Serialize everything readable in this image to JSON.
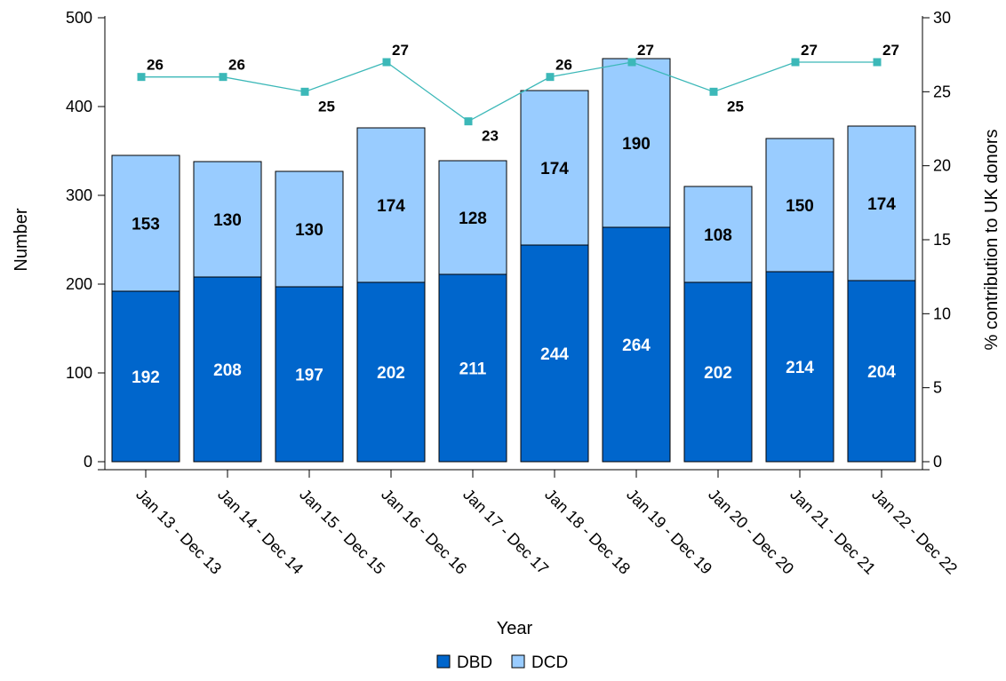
{
  "chart_data": {
    "type": "bar",
    "stacked": true,
    "title": "",
    "xlabel": "Year",
    "ylabel": "Number",
    "y2label": "% contribution to UK donors",
    "ylim": [
      0,
      500
    ],
    "y2lim": [
      0,
      30
    ],
    "yticks": [
      0,
      100,
      200,
      300,
      400,
      500
    ],
    "y2ticks": [
      0,
      5,
      10,
      15,
      20,
      25,
      30
    ],
    "categories": [
      "Jan 13 - Dec 13",
      "Jan 14 - Dec 14",
      "Jan 15 - Dec 15",
      "Jan 16 - Dec 16",
      "Jan 17 - Dec 17",
      "Jan 18 - Dec 18",
      "Jan 19 - Dec 19",
      "Jan 20 - Dec 20",
      "Jan 21 - Dec 21",
      "Jan 22 - Dec 22"
    ],
    "series": [
      {
        "name": "DBD",
        "values": [
          192,
          208,
          197,
          202,
          211,
          244,
          264,
          202,
          214,
          204
        ],
        "color": "#0066cc",
        "label_color": "#ffffff"
      },
      {
        "name": "DCD",
        "values": [
          153,
          130,
          130,
          174,
          128,
          174,
          190,
          108,
          150,
          174
        ],
        "color": "#99ccff",
        "label_color": "#000000"
      }
    ],
    "line_series": {
      "values": [
        26,
        26,
        25,
        27,
        23,
        26,
        27,
        25,
        27,
        27
      ],
      "axis": "right",
      "color": "#3cb8b8"
    },
    "legend": {
      "placement": "bottom",
      "entries": [
        "DBD",
        "DCD"
      ]
    },
    "grid": false
  }
}
